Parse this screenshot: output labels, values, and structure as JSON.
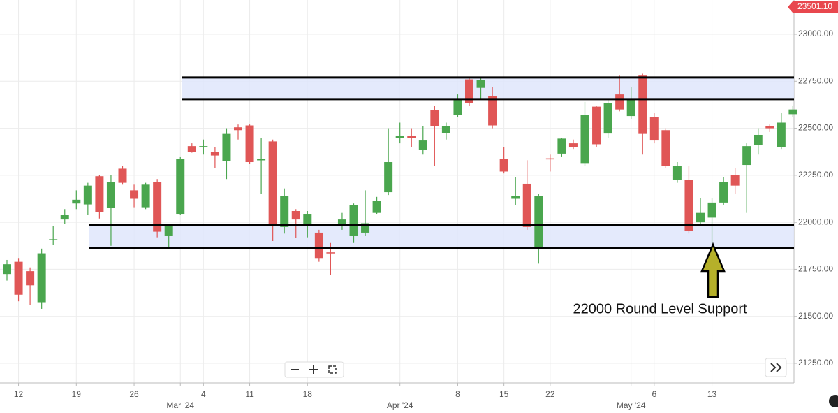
{
  "chart_data": {
    "type": "candlestick",
    "categories": [
      null,
      "12",
      null,
      null,
      null,
      null,
      "19",
      null,
      null,
      null,
      null,
      "26",
      null,
      null,
      null,
      "Mar '24",
      null,
      "4",
      null,
      null,
      null,
      "11",
      null,
      null,
      null,
      null,
      "18",
      null,
      null,
      null,
      null,
      null,
      null,
      null,
      "Apr '24",
      null,
      null,
      null,
      null,
      "8",
      null,
      null,
      null,
      "15",
      null,
      null,
      null,
      "22",
      null,
      null,
      null,
      null,
      null,
      null,
      "May '24",
      null,
      "6",
      null,
      null,
      null,
      null,
      "13",
      null,
      null,
      null,
      null,
      null,
      null,
      null
    ],
    "open": [
      21725,
      21790,
      21740,
      21575,
      21905,
      22015,
      22100,
      22095,
      22245,
      22075,
      22285,
      22170,
      22080,
      22215,
      21930,
      22045,
      22405,
      22400,
      22375,
      22325,
      22505,
      22515,
      22330,
      22430,
      21975,
      22060,
      21980,
      21945,
      21840,
      21985,
      21930,
      21945,
      22050,
      22160,
      22450,
      22460,
      22385,
      22595,
      22475,
      22570,
      22760,
      22715,
      22670,
      22335,
      22125,
      22205,
      21865,
      22340,
      22365,
      22420,
      22315,
      22615,
      22472,
      22680,
      22565,
      22780,
      22560,
      22490,
      22227,
      22225,
      22000,
      22025,
      22105,
      22250,
      22305,
      22410,
      22510,
      22400,
      22575
    ],
    "high": [
      21800,
      21810,
      21760,
      21860,
      21980,
      22070,
      22170,
      22210,
      22250,
      22250,
      22300,
      22200,
      22210,
      22230,
      21990,
      22350,
      22420,
      22440,
      22400,
      22500,
      22520,
      22520,
      22450,
      22440,
      22180,
      22070,
      22060,
      21960,
      21890,
      22050,
      22100,
      22170,
      22135,
      22500,
      22530,
      22500,
      22510,
      22620,
      22530,
      22680,
      22770,
      22770,
      22720,
      22400,
      22240,
      22330,
      22150,
      22360,
      22450,
      22440,
      22640,
      22620,
      22650,
      22780,
      22720,
      22790,
      22580,
      22500,
      22320,
      22300,
      22130,
      22130,
      22240,
      22290,
      22420,
      22500,
      22520,
      22580,
      22620
    ],
    "low": [
      21690,
      21580,
      21560,
      21540,
      21880,
      21990,
      22070,
      22040,
      22020,
      21875,
      22200,
      22080,
      22070,
      21920,
      21870,
      22040,
      22370,
      22360,
      22290,
      22230,
      22440,
      22310,
      22150,
      21900,
      21940,
      21915,
      21920,
      21790,
      21720,
      21960,
      21890,
      21930,
      22045,
      22145,
      22420,
      22400,
      22360,
      22300,
      22440,
      22560,
      22620,
      22660,
      22500,
      22260,
      22090,
      21960,
      21780,
      22270,
      22350,
      22390,
      22300,
      22400,
      22450,
      22590,
      22550,
      22360,
      22420,
      22290,
      22210,
      21940,
      21990,
      21890,
      22090,
      22150,
      22050,
      22360,
      22480,
      22390,
      22560
    ],
    "close": [
      21777,
      21615,
      21665,
      21835,
      21910,
      22040,
      22120,
      22195,
      22055,
      22215,
      22210,
      22125,
      22200,
      21950,
      21985,
      22335,
      22375,
      22405,
      22355,
      22470,
      22490,
      22320,
      22335,
      21990,
      22140,
      22015,
      22045,
      21810,
      21835,
      22015,
      22090,
      21995,
      22115,
      22320,
      22460,
      22450,
      22435,
      22510,
      22510,
      22655,
      22635,
      22755,
      22515,
      22270,
      22140,
      21975,
      22140,
      22335,
      22445,
      22400,
      22570,
      22415,
      22635,
      22600,
      22655,
      22470,
      22435,
      22300,
      22300,
      21955,
      22050,
      22105,
      22215,
      22195,
      22405,
      22465,
      22500,
      22530,
      22600
    ],
    "up_color": "#4aa64e",
    "down_color": "#e05656",
    "ylim": [
      21146,
      23182
    ],
    "yticks": [
      {
        "value": 21250,
        "label": "21250.00"
      },
      {
        "value": 21500,
        "label": "21500.00"
      },
      {
        "value": 21750,
        "label": "21750.00"
      },
      {
        "value": 22000,
        "label": "22000.00"
      },
      {
        "value": 22250,
        "label": "22250.00"
      },
      {
        "value": 22500,
        "label": "22500.00"
      },
      {
        "value": 22750,
        "label": "22750.00"
      },
      {
        "value": 23000,
        "label": "23000.00"
      }
    ],
    "grid": true,
    "zones": [
      {
        "upper": 22770,
        "lower": 22655
      },
      {
        "upper": 21985,
        "lower": 21865
      }
    ],
    "zone_color": "#dfe6fb",
    "annotation": "22000 Round Level Support",
    "price_tag": "23501.10",
    "price_tag_color": "#e8474e"
  }
}
